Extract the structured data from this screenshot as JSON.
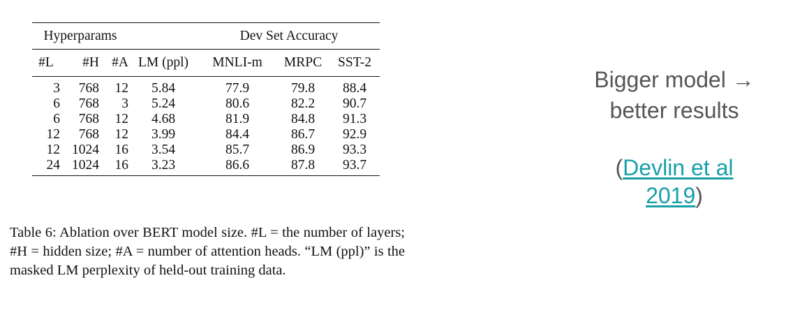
{
  "table": {
    "group_headers": {
      "hyperparams": "Hyperparams",
      "dev_accuracy": "Dev Set Accuracy"
    },
    "columns": [
      "#L",
      "#H",
      "#A",
      "LM (ppl)",
      "MNLI-m",
      "MRPC",
      "SST-2"
    ],
    "rows": [
      [
        "3",
        "768",
        "12",
        "5.84",
        "77.9",
        "79.8",
        "88.4"
      ],
      [
        "6",
        "768",
        "3",
        "5.24",
        "80.6",
        "82.2",
        "90.7"
      ],
      [
        "6",
        "768",
        "12",
        "4.68",
        "81.9",
        "84.8",
        "91.3"
      ],
      [
        "12",
        "768",
        "12",
        "3.99",
        "84.4",
        "86.7",
        "92.9"
      ],
      [
        "12",
        "1024",
        "16",
        "3.54",
        "85.7",
        "86.9",
        "93.3"
      ],
      [
        "24",
        "1024",
        "16",
        "3.23",
        "86.6",
        "87.8",
        "93.7"
      ]
    ]
  },
  "caption": "Table 6:  Ablation over BERT model size. #L = the number of layers; #H = hidden size; #A = number of attention heads. “LM (ppl)” is the masked LM perplexity of held-out training data.",
  "side_note": {
    "line1": "Bigger model →",
    "line2": "better results",
    "citation_open": "(",
    "citation_link_line1": "Devlin et al",
    "citation_link_line2": "2019",
    "citation_close": ")",
    "link_color": "#17a0a8",
    "text_color": "#555555"
  }
}
